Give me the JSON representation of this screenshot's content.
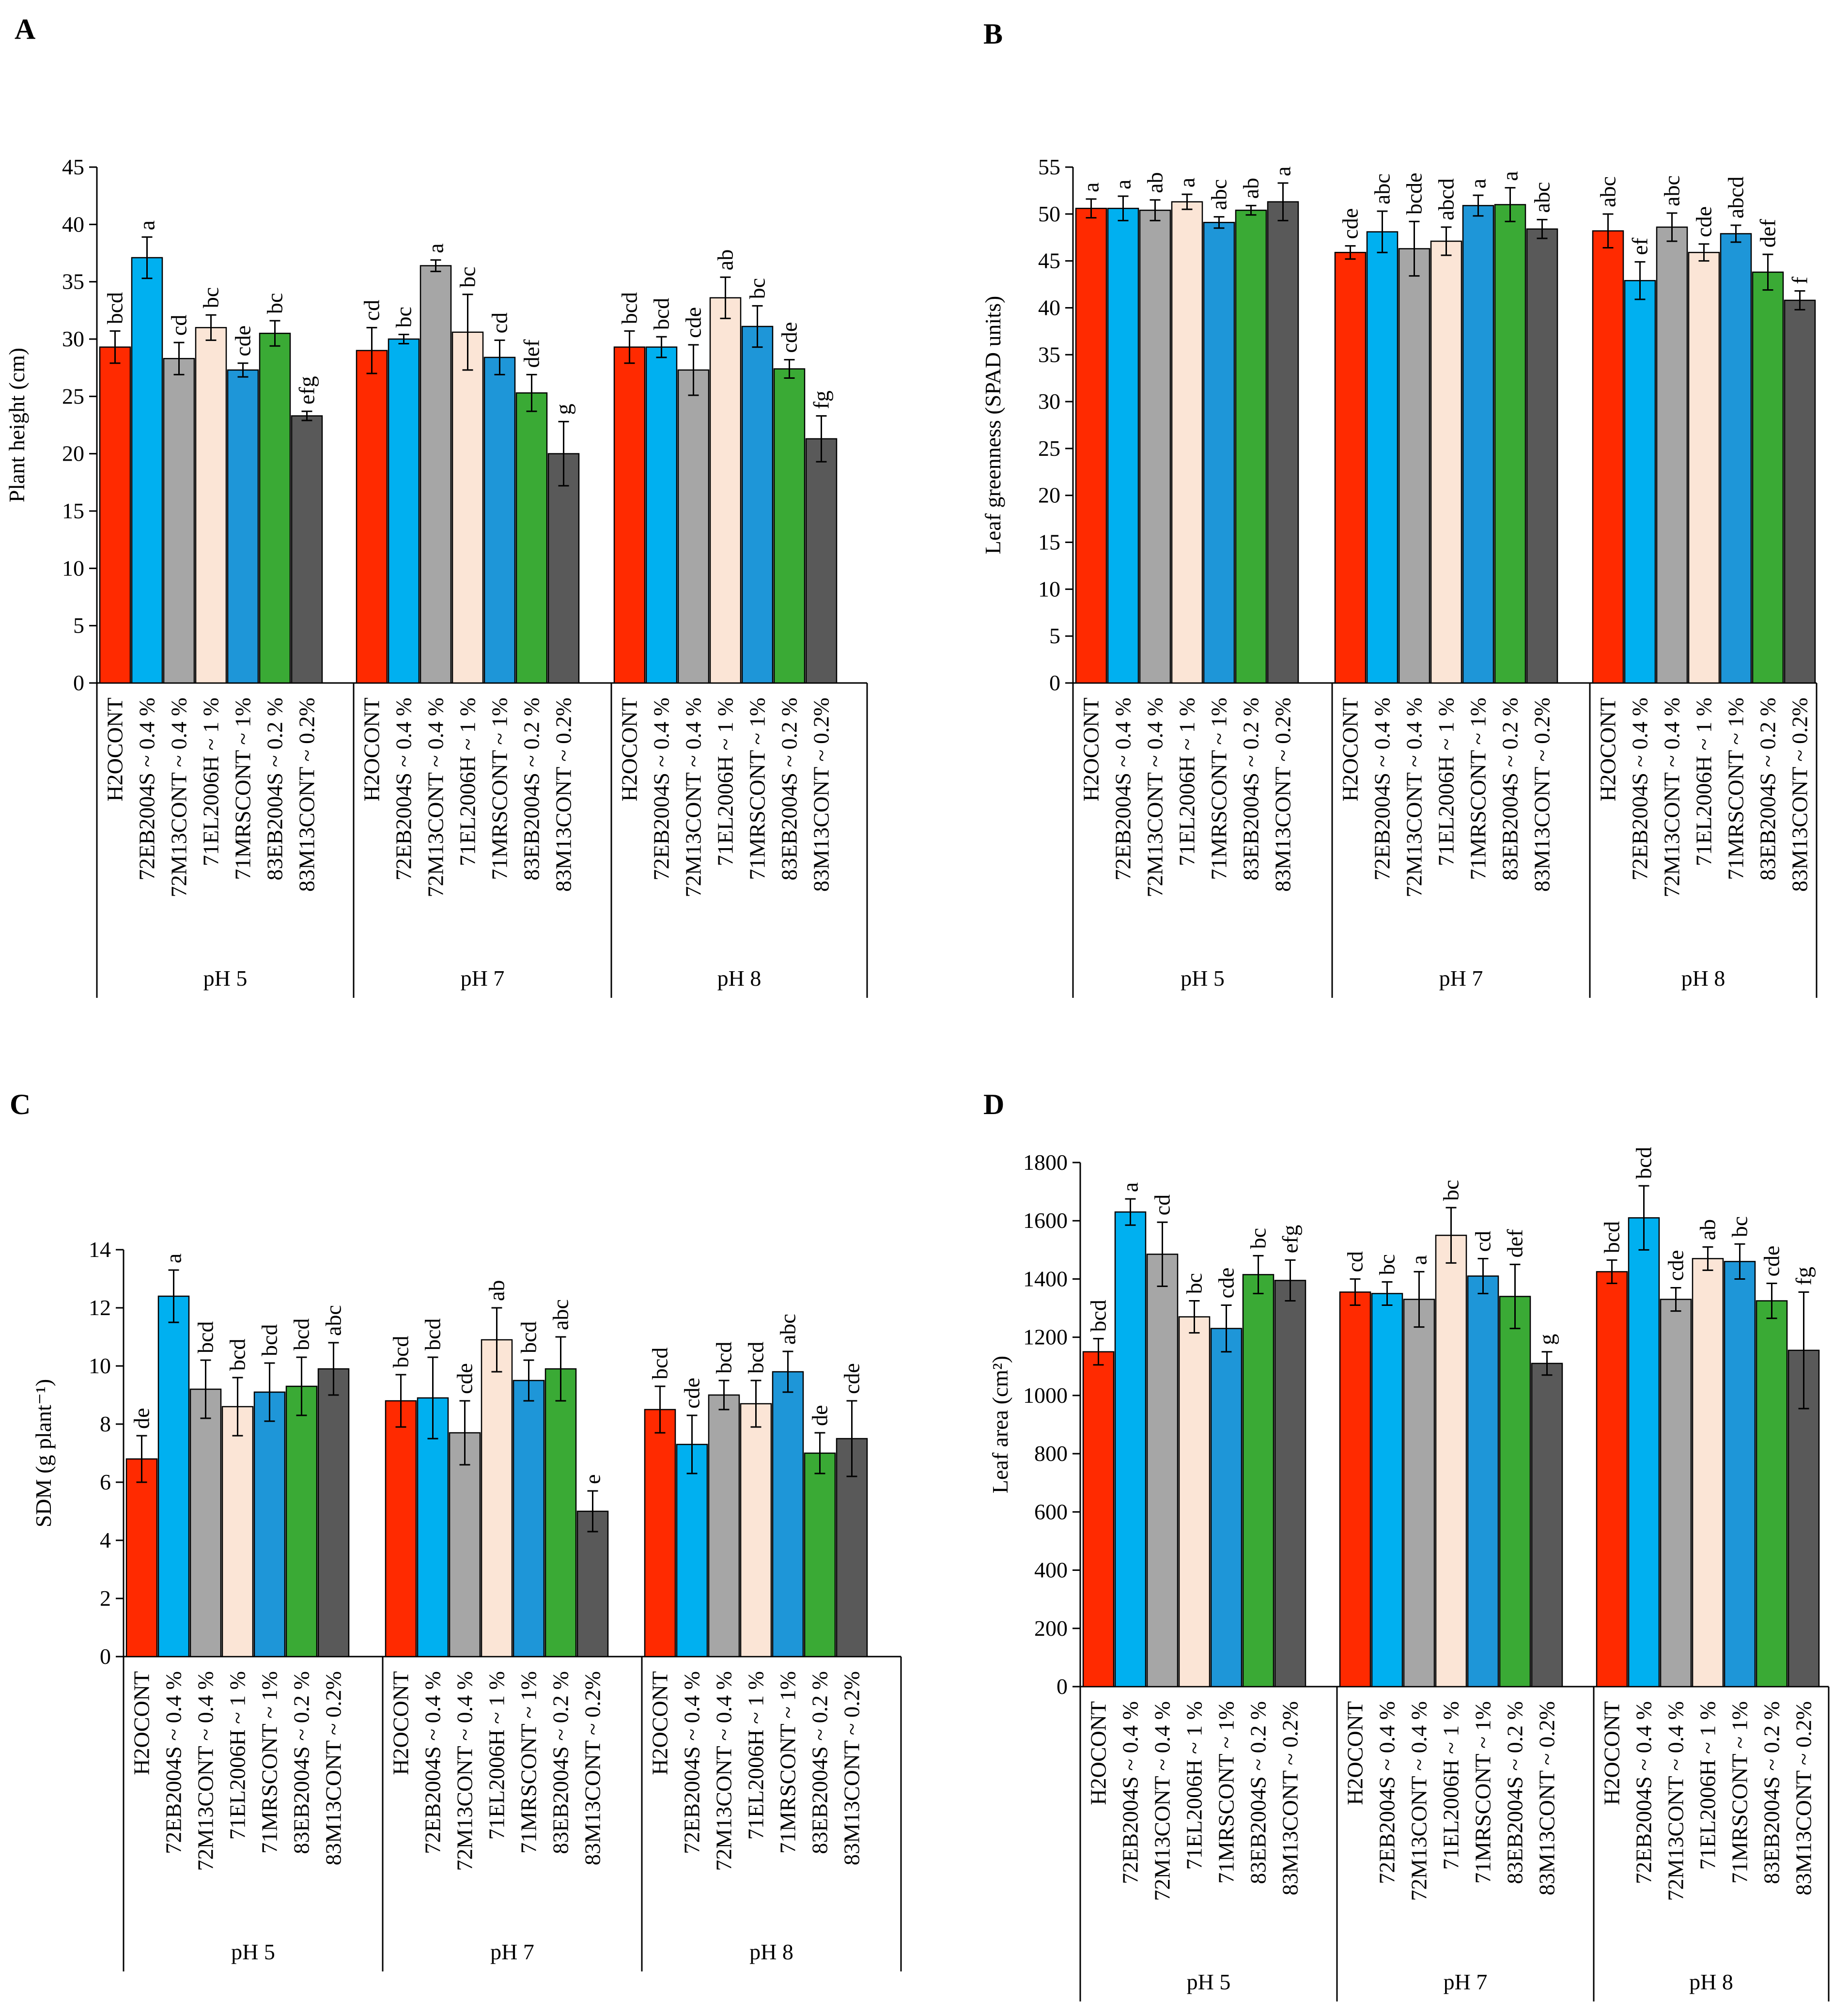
{
  "figure": {
    "categories": [
      "H2OCONT",
      "72EB2004S ~ 0.4 %",
      "72M13CONT ~ 0.4 %",
      "71EL2006H ~ 1 %",
      "71MRSCONT ~ 1%",
      "83EB2004S ~ 0.2 %",
      "83M13CONT ~ 0.2%"
    ],
    "groups": [
      "pH 5",
      "pH 7",
      "pH 8"
    ],
    "colors": [
      "#ff2a00",
      "#00b0f0",
      "#a6a6a6",
      "#fbe5d6",
      "#1e96d8",
      "#3aaa35",
      "#595959"
    ],
    "axis_color": "#000000",
    "bar_outline": "#000000"
  },
  "chart_data": [
    {
      "panel": "A",
      "type": "bar",
      "ylabel": "Plant height (cm)",
      "ylim": [
        0,
        45
      ],
      "ystep": 5,
      "yticks": [
        "0",
        "5",
        "10",
        "15",
        "20",
        "25",
        "30",
        "35",
        "40",
        "45"
      ],
      "series": [
        {
          "group": "pH 5",
          "values": [
            29.3,
            37.1,
            28.3,
            31.0,
            27.3,
            30.5,
            23.3
          ],
          "errors": [
            1.4,
            1.8,
            1.4,
            1.1,
            0.6,
            1.1,
            0.4
          ],
          "letters": [
            "bcd",
            "a",
            "cd",
            "bc",
            "cde",
            "bc",
            "efg"
          ]
        },
        {
          "group": "pH 7",
          "values": [
            29.0,
            30.0,
            36.4,
            30.6,
            28.4,
            25.3,
            20.0
          ],
          "errors": [
            2.0,
            0.4,
            0.5,
            3.3,
            1.5,
            1.6,
            2.8
          ],
          "letters": [
            "cd",
            "bc",
            "a",
            "bc",
            "cd",
            "def",
            "g"
          ]
        },
        {
          "group": "pH 8",
          "values": [
            29.3,
            29.3,
            27.3,
            33.6,
            31.1,
            27.4,
            21.3
          ],
          "errors": [
            1.4,
            0.9,
            2.2,
            1.8,
            1.8,
            0.8,
            2.0
          ],
          "letters": [
            "bcd",
            "bcd",
            "cde",
            "ab",
            "bc",
            "cde",
            "fg"
          ]
        }
      ]
    },
    {
      "panel": "B",
      "type": "bar",
      "ylabel": "Leaf greenness (SPAD units)",
      "ylim": [
        0,
        55
      ],
      "ystep": 5,
      "yticks": [
        "0",
        "5",
        "10",
        "15",
        "20",
        "25",
        "30",
        "35",
        "40",
        "45",
        "50",
        "55"
      ],
      "series": [
        {
          "group": "pH 5",
          "values": [
            50.6,
            50.6,
            50.4,
            51.3,
            49.1,
            50.4,
            51.3
          ],
          "errors": [
            1.0,
            1.3,
            1.1,
            0.8,
            0.6,
            0.5,
            2.0
          ],
          "letters": [
            "a",
            "a",
            "ab",
            "a",
            "abc",
            "ab",
            "a"
          ]
        },
        {
          "group": "pH 7",
          "values": [
            45.9,
            48.1,
            46.3,
            47.1,
            50.9,
            51.0,
            48.4
          ],
          "errors": [
            0.7,
            2.2,
            2.9,
            1.5,
            1.1,
            1.8,
            1.0
          ],
          "letters": [
            "cde",
            "abc",
            "bcde",
            "abcd",
            "a",
            "a",
            "abc"
          ]
        },
        {
          "group": "pH 8",
          "values": [
            48.2,
            42.9,
            48.6,
            45.9,
            47.9,
            43.8,
            40.8
          ],
          "errors": [
            1.8,
            2.0,
            1.5,
            0.9,
            0.9,
            1.9,
            1.0
          ],
          "letters": [
            "abc",
            "ef",
            "abc",
            "cde",
            "abcd",
            "def",
            "f"
          ]
        }
      ]
    },
    {
      "panel": "C",
      "type": "bar",
      "ylabel": "SDM (g plant⁻¹)",
      "ylim": [
        0,
        14
      ],
      "ystep": 2,
      "yticks": [
        "0",
        "2",
        "4",
        "6",
        "8",
        "10",
        "12",
        "14"
      ],
      "series": [
        {
          "group": "pH 5",
          "values": [
            6.8,
            12.4,
            9.2,
            8.6,
            9.1,
            9.3,
            9.9
          ],
          "errors": [
            0.8,
            0.9,
            1.0,
            1.0,
            1.0,
            1.0,
            0.9
          ],
          "letters": [
            "de",
            "a",
            "bcd",
            "bcd",
            "bcd",
            "bcd",
            "abc"
          ]
        },
        {
          "group": "pH 7",
          "values": [
            8.8,
            8.9,
            7.7,
            10.9,
            9.5,
            9.9,
            5.0
          ],
          "errors": [
            0.9,
            1.4,
            1.1,
            1.1,
            0.7,
            1.1,
            0.7
          ],
          "letters": [
            "bcd",
            "bcd",
            "cde",
            "ab",
            "bcd",
            "abc",
            "e"
          ]
        },
        {
          "group": "pH 8",
          "values": [
            8.5,
            7.3,
            9.0,
            8.7,
            9.8,
            7.0,
            7.5
          ],
          "errors": [
            0.8,
            1.0,
            0.5,
            0.8,
            0.7,
            0.7,
            1.3
          ],
          "letters": [
            "bcd",
            "cde",
            "bcd",
            "bcd",
            "abc",
            "de",
            "cde"
          ]
        }
      ]
    },
    {
      "panel": "D",
      "type": "bar",
      "ylabel": "Leaf area (cm²)",
      "ylim": [
        0,
        1800
      ],
      "ystep": 200,
      "yticks": [
        "0",
        "200",
        "400",
        "600",
        "800",
        "1000",
        "1200",
        "1400",
        "1600",
        "1800"
      ],
      "series": [
        {
          "group": "pH 5",
          "values": [
            1150,
            1630,
            1485,
            1270,
            1230,
            1415,
            1395
          ],
          "errors": [
            45,
            45,
            110,
            55,
            80,
            65,
            70
          ],
          "letters": [
            "bcd",
            "a",
            "cd",
            "bc",
            "cde",
            "bc",
            "efg"
          ]
        },
        {
          "group": "pH 7",
          "values": [
            1355,
            1350,
            1330,
            1550,
            1410,
            1340,
            1110
          ],
          "errors": [
            45,
            40,
            95,
            95,
            60,
            110,
            40
          ],
          "letters": [
            "cd",
            "bc",
            "a",
            "bc",
            "cd",
            "def",
            "g"
          ]
        },
        {
          "group": "pH 8",
          "values": [
            1425,
            1610,
            1330,
            1470,
            1460,
            1325,
            1155
          ],
          "errors": [
            40,
            110,
            40,
            40,
            60,
            60,
            200
          ],
          "letters": [
            "bcd",
            "bcd",
            "cde",
            "ab",
            "bc",
            "cde",
            "fg"
          ]
        }
      ]
    }
  ]
}
